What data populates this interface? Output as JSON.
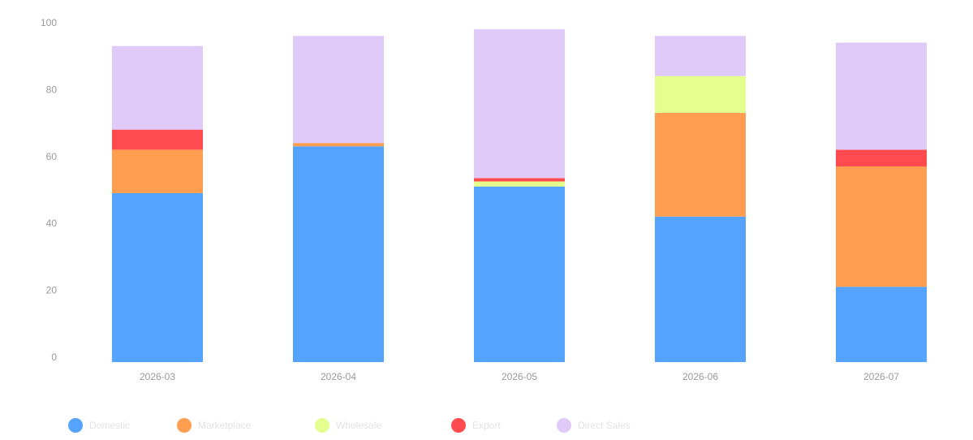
{
  "chart_data": {
    "type": "bar",
    "stacked": true,
    "categories": [
      "2026-03",
      "2026-04",
      "2026-05",
      "2026-06",
      "2026-07"
    ],
    "series": [
      {
        "name": "Domestic",
        "color": "#54a3ff",
        "values": [
          50.5,
          64.5,
          52.5,
          43.5,
          22.5
        ]
      },
      {
        "name": "Marketplace",
        "color": "#ff9d50",
        "values": [
          13,
          1,
          0,
          31,
          36
        ]
      },
      {
        "name": "Wholesale",
        "color": "#e5ff8f",
        "values": [
          0,
          0,
          1.5,
          11,
          0
        ]
      },
      {
        "name": "Export",
        "color": "#ff4b4f",
        "values": [
          6,
          0,
          1,
          0,
          5
        ]
      },
      {
        "name": "Direct Sales",
        "color": "#dfcaf9",
        "values": [
          25,
          32,
          44.5,
          12,
          32
        ]
      }
    ],
    "ylabel": "",
    "ylim": [
      0,
      100
    ],
    "yticks": [
      0,
      20,
      40,
      60,
      80,
      100
    ],
    "grid": false,
    "legend_position": "bottom-left"
  }
}
